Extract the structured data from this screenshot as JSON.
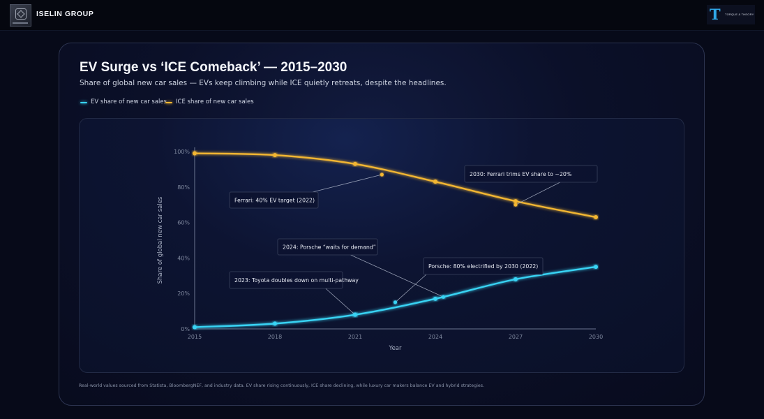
{
  "header": {
    "brand_name": "ISELIN GROUP",
    "logo_icon": "iselin-logo-icon",
    "badge_text": "TORQUE & THEORY",
    "badge_glyph": "T"
  },
  "colors": {
    "ev": "#38d3f4",
    "ice": "#f2b632",
    "axis": "#6b7590",
    "tick": "#7f889e"
  },
  "chart_data": {
    "type": "line",
    "title": "EV Surge vs ‘ICE Comeback’ — 2015–2030",
    "subtitle": "Share of global new car sales — EVs keep climbing while ICE quietly retreats, despite the headlines.",
    "xlabel": "Year",
    "ylabel": "Share of global new car sales",
    "xlim": [
      2015,
      2030
    ],
    "ylim": [
      0,
      100
    ],
    "x_ticks": [
      2015,
      2018,
      2021,
      2024,
      2027,
      2030
    ],
    "y_ticks": [
      0,
      20,
      40,
      60,
      80,
      100
    ],
    "y_tick_labels": [
      "0%",
      "20%",
      "40%",
      "60%",
      "80%",
      "100%"
    ],
    "legend_position": "top-left",
    "series": [
      {
        "name": "EV share of new car sales",
        "key": "ev",
        "x": [
          2015,
          2018,
          2021,
          2024,
          2027,
          2030
        ],
        "values": [
          1,
          3,
          8,
          17,
          28,
          35
        ]
      },
      {
        "name": "ICE share of new car sales",
        "key": "ice",
        "x": [
          2015,
          2018,
          2021,
          2024,
          2027,
          2030
        ],
        "values": [
          99,
          98,
          93,
          83,
          72,
          63
        ]
      }
    ],
    "annotations": [
      {
        "text": "Ferrari: 40% EV target (2022)",
        "series": "ice",
        "x": 2022,
        "y": 87
      },
      {
        "text": "2030: Ferrari trims EV share to ~20%",
        "series": "ice",
        "x": 2027,
        "y": 70
      },
      {
        "text": "2024: Porsche “waits for demand”",
        "series": "ev",
        "x": 2024.3,
        "y": 18
      },
      {
        "text": "Porsche: 80% electrified by 2030 (2022)",
        "series": "ev",
        "x": 2022.5,
        "y": 15
      },
      {
        "text": "2023: Toyota doubles down on multi-pathway",
        "series": "ev",
        "x": 2021,
        "y": 8
      }
    ]
  },
  "footnote": "Real-world values sourced from Statista, BloombergNEF, and industry data. EV share rising continuously, ICE share declining, while luxury car makers balance EV and hybrid strategies."
}
